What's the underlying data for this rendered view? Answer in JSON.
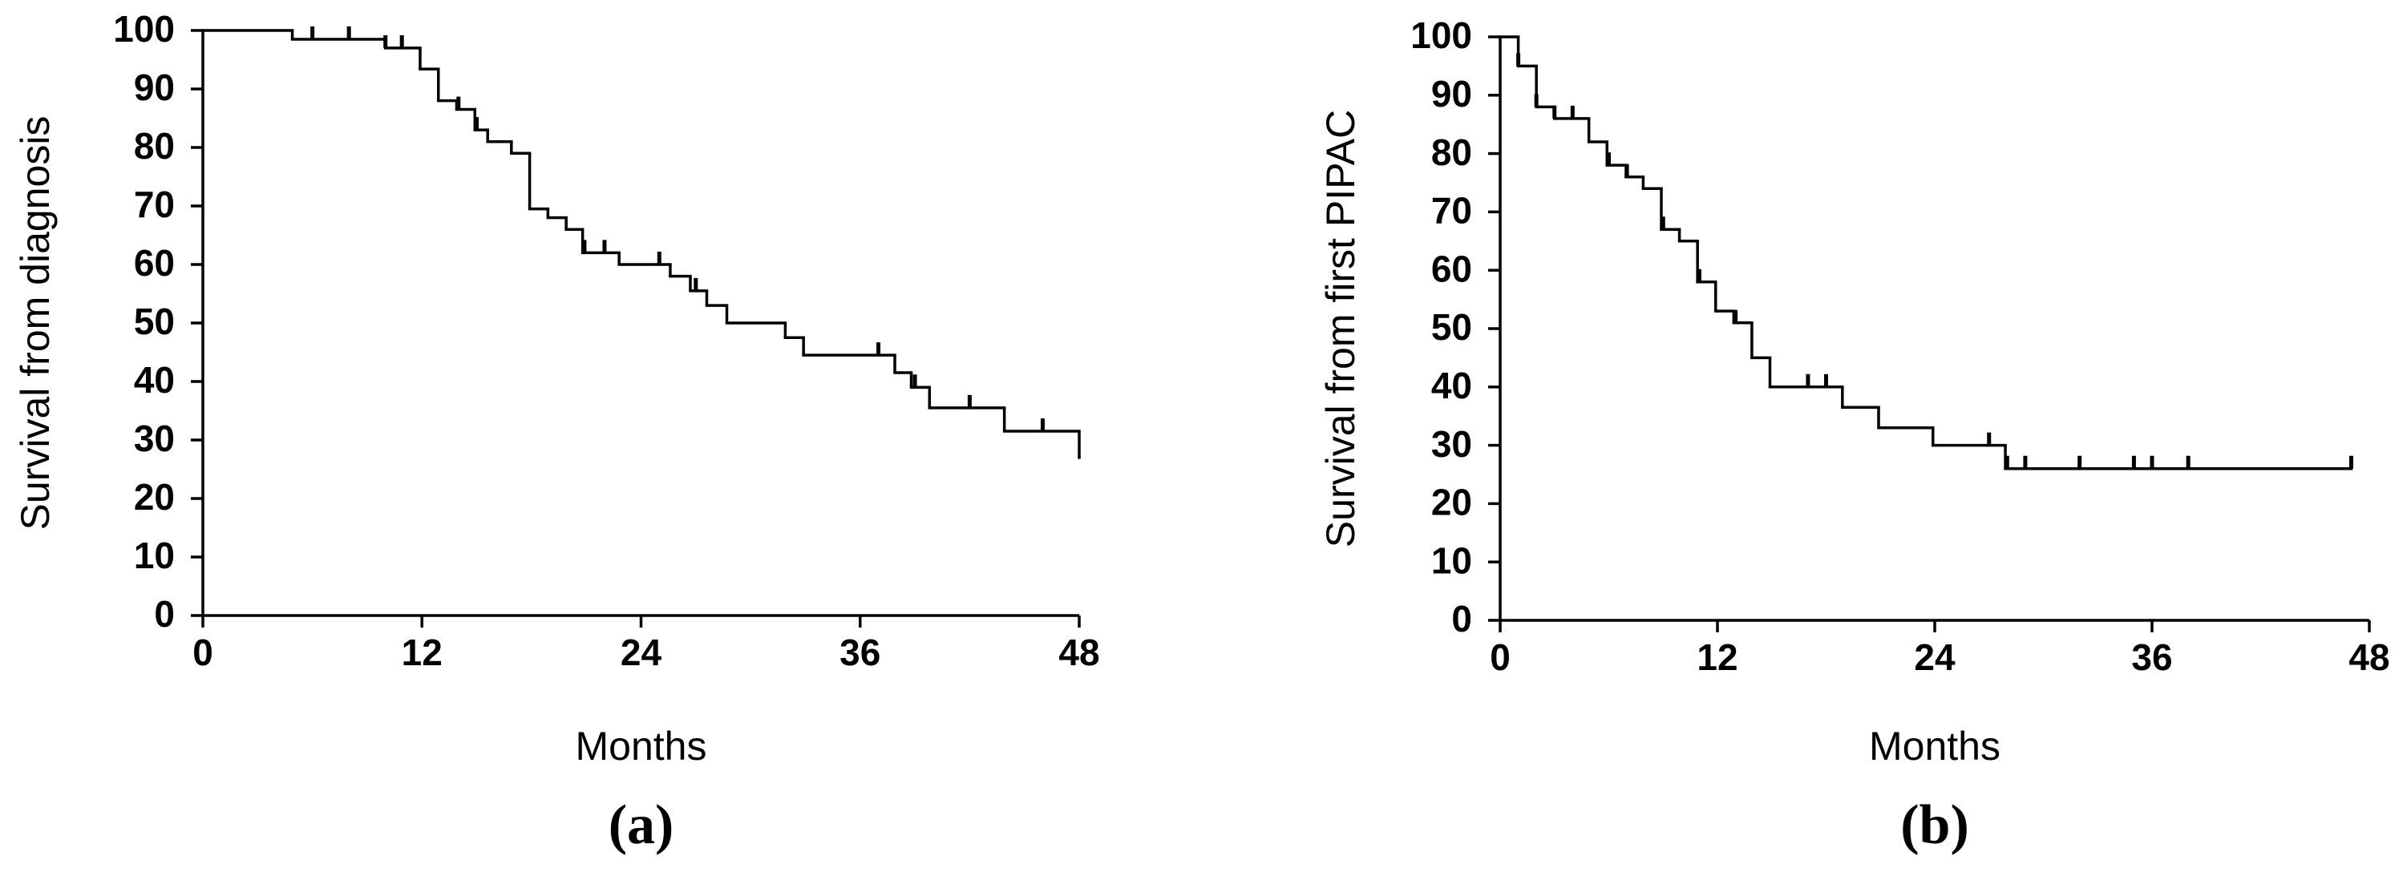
{
  "chart_data": [
    {
      "type": "step",
      "y_label": "Survival from diagnosis",
      "x_label": "Months",
      "caption": "(a)",
      "color": "#000000",
      "x": [
        0,
        4.9,
        10,
        11.9,
        12.9,
        13.9,
        14.9,
        15.6,
        16.9,
        17.9,
        18.9,
        19.9,
        20.8,
        22.8,
        25.6,
        26.7,
        27.6,
        28.7,
        31.9,
        32.9,
        37.9,
        38.8,
        39.8,
        43.9,
        48
      ],
      "values": [
        100,
        98.5,
        97,
        93.4,
        88,
        86.5,
        83,
        81,
        79,
        69.5,
        68,
        66,
        62,
        60,
        58,
        55.5,
        53,
        50,
        47.5,
        44.5,
        41.5,
        39,
        35.5,
        31.5,
        27
      ],
      "censor_x": [
        6,
        8,
        10,
        10.9,
        14,
        15,
        20.9,
        22,
        25,
        27,
        37,
        39,
        42,
        46
      ],
      "censor_values": [
        98.5,
        98.5,
        97,
        97,
        86.5,
        83,
        62,
        62,
        60,
        55.5,
        44.5,
        39,
        35.5,
        31.5
      ],
      "xlim": [
        0,
        48
      ],
      "xticks": [
        0,
        12,
        24,
        36,
        48
      ],
      "ylim": [
        0,
        100
      ],
      "yticks": [
        0,
        10,
        20,
        30,
        40,
        50,
        60,
        70,
        80,
        90,
        100
      ]
    },
    {
      "type": "step",
      "y_label": "Survival from first PIPAC",
      "x_label": "Months",
      "caption": "(b)",
      "color": "#000000",
      "x": [
        0,
        1,
        2,
        3,
        4.9,
        5.9,
        6.95,
        7.9,
        8.9,
        9.9,
        10.9,
        11.9,
        12.9,
        13.9,
        14.9,
        18.9,
        20.9,
        23.9,
        27.9,
        47
      ],
      "values": [
        100,
        95,
        88,
        86,
        82,
        78,
        76,
        74,
        67,
        65,
        58,
        53,
        51,
        45,
        40,
        36.5,
        33,
        30,
        26,
        26
      ],
      "censor_x": [
        1,
        2,
        3,
        4,
        6,
        7,
        9,
        11,
        13,
        17,
        18,
        27,
        28,
        29,
        32,
        35,
        36,
        38,
        47
      ],
      "censor_values": [
        95,
        88,
        86,
        86,
        78,
        76,
        67,
        58,
        51,
        40,
        40,
        30,
        26,
        26,
        26,
        26,
        26,
        26,
        26
      ],
      "xlim": [
        0,
        48
      ],
      "xticks": [
        0,
        12,
        24,
        36,
        48
      ],
      "ylim": [
        0,
        100
      ],
      "yticks": [
        0,
        10,
        20,
        30,
        40,
        50,
        60,
        70,
        80,
        90,
        100
      ]
    }
  ]
}
